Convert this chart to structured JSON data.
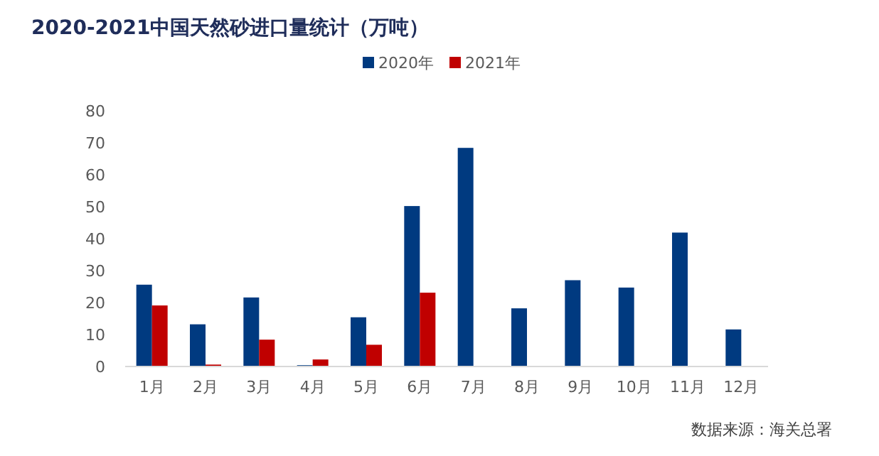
{
  "chart_data": {
    "type": "bar",
    "title": "2020-2021中国天然砂进口量统计（万吨）",
    "categories": [
      "1月",
      "2月",
      "3月",
      "4月",
      "5月",
      "6月",
      "7月",
      "8月",
      "9月",
      "10月",
      "11月",
      "12月"
    ],
    "series": [
      {
        "name": "2020年",
        "color": "#003a80",
        "values": [
          25.6,
          13.2,
          21.6,
          0.4,
          15.4,
          50.2,
          68.4,
          18.2,
          27.0,
          24.7,
          41.9,
          11.6
        ]
      },
      {
        "name": "2021年",
        "color": "#c00000",
        "values": [
          19.1,
          0.6,
          8.4,
          2.2,
          6.8,
          23.1,
          null,
          null,
          null,
          null,
          null,
          null
        ]
      }
    ],
    "ylim": [
      0,
      80
    ],
    "yticks": [
      0,
      10,
      20,
      30,
      40,
      50,
      60,
      70,
      80
    ],
    "grid": false,
    "legend": "top",
    "annotations": [
      "数据来源：海关总署"
    ]
  }
}
